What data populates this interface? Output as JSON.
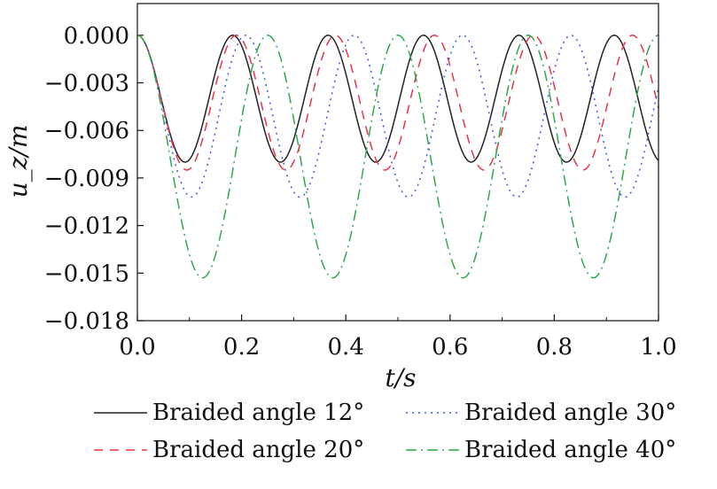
{
  "chart_data": {
    "type": "line",
    "xlabel": "t/s",
    "ylabel": "u_z/m",
    "xlim": [
      0.0,
      1.0
    ],
    "ylim": [
      -0.018,
      0.002
    ],
    "xticks": [
      0.0,
      0.2,
      0.4,
      0.6,
      0.8,
      1.0
    ],
    "xtick_labels": [
      "0.0",
      "0.2",
      "0.4",
      "0.6",
      "0.8",
      "1.0"
    ],
    "yticks": [
      0.0,
      -0.003,
      -0.006,
      -0.009,
      -0.012,
      -0.015,
      -0.018
    ],
    "ytick_labels": [
      "0.000",
      "−0.003",
      "−0.006",
      "−0.009",
      "−0.012",
      "−0.015",
      "−0.018"
    ],
    "grid": false,
    "legend_placement": "bottom",
    "series": [
      {
        "name": "Braided angle 12°",
        "color": "#222222",
        "dash": "solid",
        "period": 0.183,
        "min": -0.008,
        "x": [
          0.0,
          0.0915,
          0.183,
          0.2745,
          0.366,
          0.4575,
          0.549,
          0.6405,
          0.732,
          0.8235,
          0.915,
          1.0
        ],
        "y": [
          0.0,
          -0.008,
          0.0,
          -0.008,
          0.0,
          -0.008,
          0.0,
          -0.008,
          0.0,
          -0.008,
          0.0,
          -0.0075
        ]
      },
      {
        "name": "Braided angle 20°",
        "color": "#e8344a",
        "dash": "10,8",
        "period": 0.19,
        "min": -0.0085,
        "x": [
          0.0,
          0.095,
          0.19,
          0.285,
          0.38,
          0.475,
          0.57,
          0.665,
          0.76,
          0.855,
          0.95,
          1.0
        ],
        "y": [
          0.0,
          -0.0085,
          0.0,
          -0.0085,
          0.0,
          -0.0085,
          0.0,
          -0.0085,
          0.0,
          -0.0085,
          0.0,
          -0.005
        ]
      },
      {
        "name": "Braided angle 30°",
        "color": "#3b5bd6",
        "dash": "2,5",
        "period": 0.208,
        "min": -0.0102,
        "x": [
          0.0,
          0.104,
          0.208,
          0.312,
          0.416,
          0.52,
          0.624,
          0.728,
          0.832,
          0.936,
          1.0
        ],
        "y": [
          0.0,
          -0.0102,
          0.0,
          -0.0102,
          0.0,
          -0.0102,
          0.0,
          -0.0102,
          0.0,
          -0.0102,
          -0.003
        ]
      },
      {
        "name": "Braided angle 40°",
        "color": "#2fa84a",
        "dash": "12,5,2,5",
        "period": 0.25,
        "min": -0.0153,
        "x": [
          0.0,
          0.125,
          0.25,
          0.375,
          0.5,
          0.625,
          0.75,
          0.875,
          1.0
        ],
        "y": [
          0.0,
          -0.0153,
          0.0,
          -0.0153,
          0.0,
          -0.0153,
          0.0,
          -0.0153,
          0.0
        ]
      }
    ]
  }
}
